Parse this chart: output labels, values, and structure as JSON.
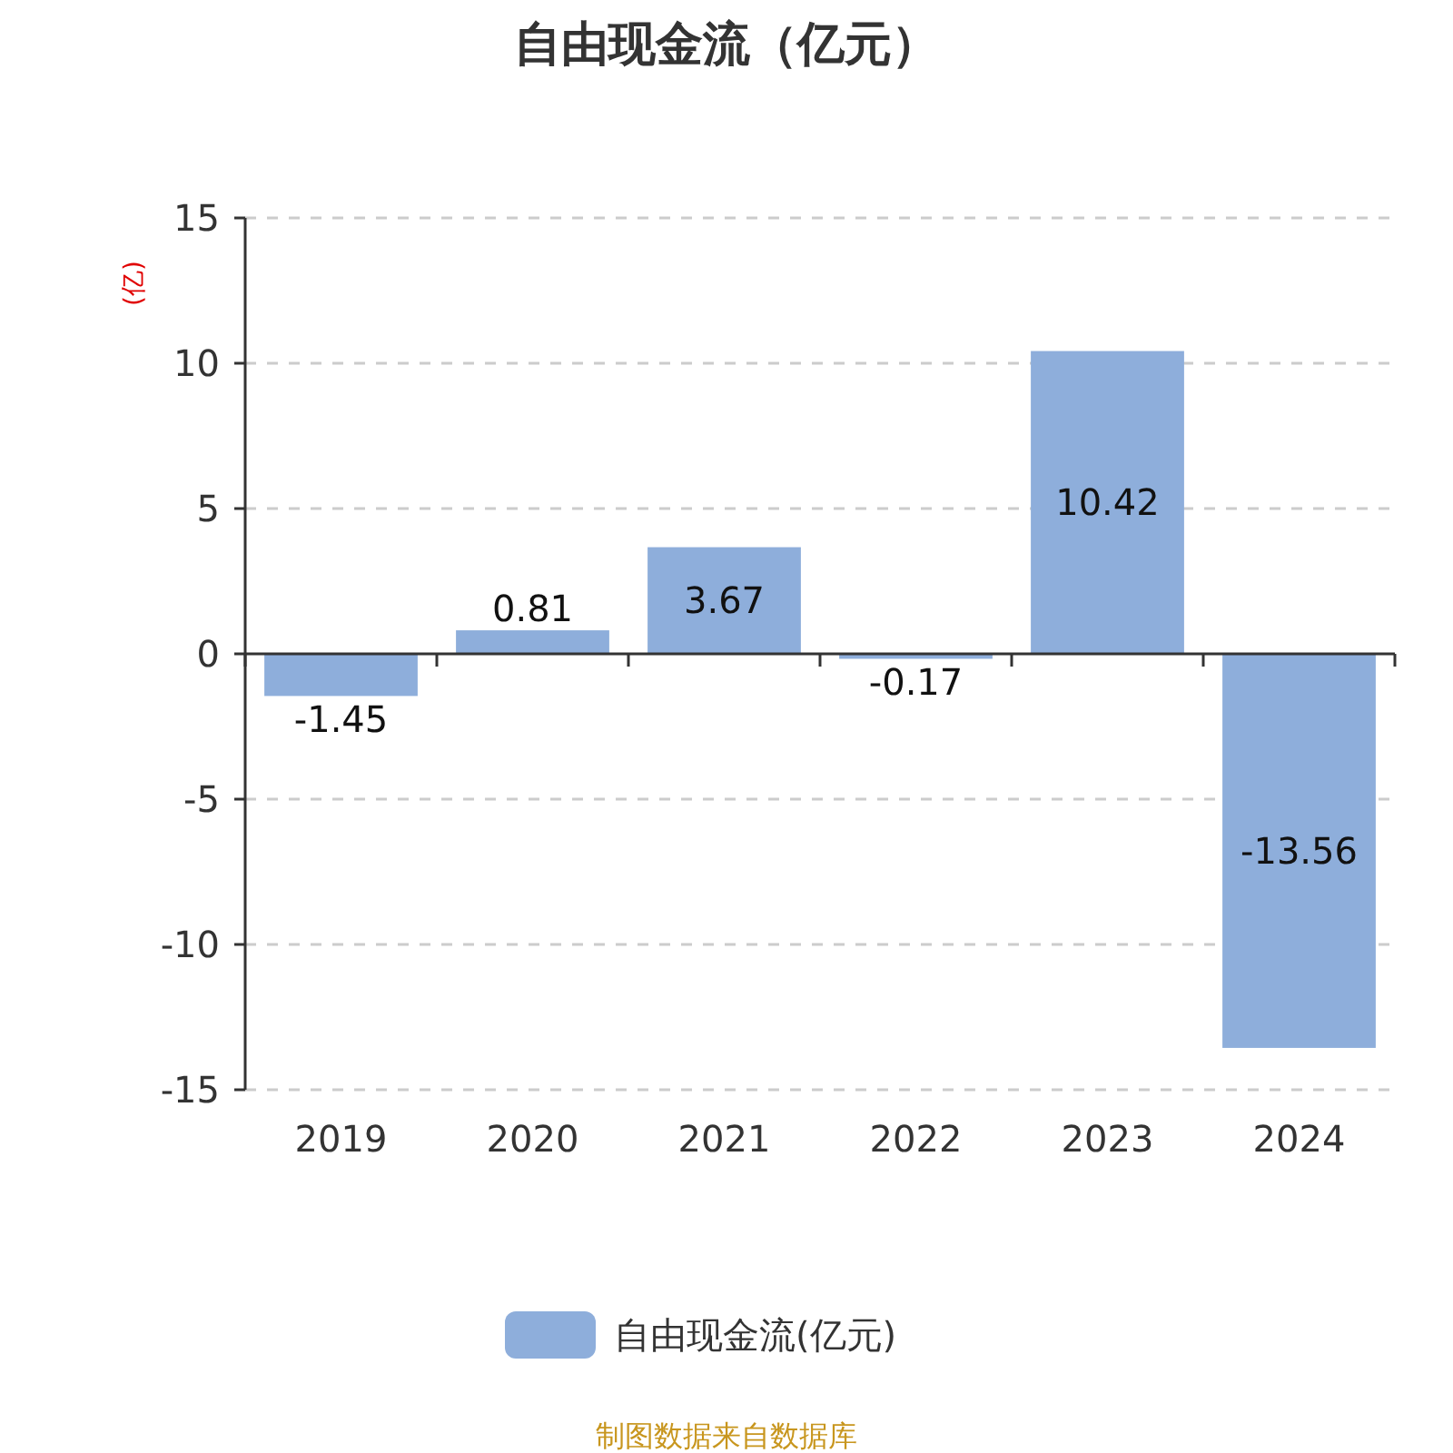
{
  "chart_data": {
    "type": "bar",
    "title": "自由现金流（亿元）",
    "ylabel": "(亿)",
    "categories": [
      "2019",
      "2020",
      "2021",
      "2022",
      "2023",
      "2024"
    ],
    "series": [
      {
        "name": "自由现金流(亿元)",
        "color": "#8eaedb",
        "values": [
          -1.45,
          0.81,
          3.67,
          -0.17,
          10.42,
          -13.56
        ]
      }
    ],
    "ylim": [
      -15,
      15
    ],
    "yticks": [
      -15,
      -10,
      -5,
      0,
      5,
      10,
      15
    ],
    "grid": "y",
    "legend": "bottom",
    "data_labels": true,
    "annotations": [
      "制图数据来自数据库"
    ]
  }
}
